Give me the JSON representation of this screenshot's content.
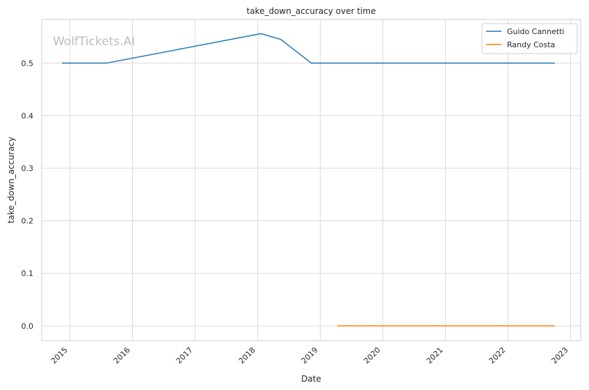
{
  "chart_data": {
    "type": "line",
    "title": "take_down_accuracy over time",
    "xlabel": "Date",
    "ylabel": "take_down_accuracy",
    "watermark": "WolfTickets.AI",
    "x_ticks": [
      "2015",
      "2016",
      "2017",
      "2018",
      "2019",
      "2020",
      "2021",
      "2022",
      "2023"
    ],
    "y_ticks": [
      "0.0",
      "0.1",
      "0.2",
      "0.3",
      "0.4",
      "0.5"
    ],
    "xlim": [
      "2014-07-20",
      "2023-03-01"
    ],
    "ylim": [
      -0.028,
      0.583
    ],
    "grid": true,
    "legend_position": "top-right",
    "series": [
      {
        "name": "Guido Cannetti",
        "color": "#1f77b4",
        "x": [
          "2014-11-15",
          "2015-08-01",
          "2018-01-20",
          "2018-05-15",
          "2018-11-10",
          "2022-10-01"
        ],
        "y": [
          0.5,
          0.5,
          0.556,
          0.545,
          0.5,
          0.5
        ]
      },
      {
        "name": "Randy Costa",
        "color": "#ff7f0e",
        "x": [
          "2019-04-10",
          "2022-10-01"
        ],
        "y": [
          0.0,
          0.0
        ]
      }
    ]
  }
}
